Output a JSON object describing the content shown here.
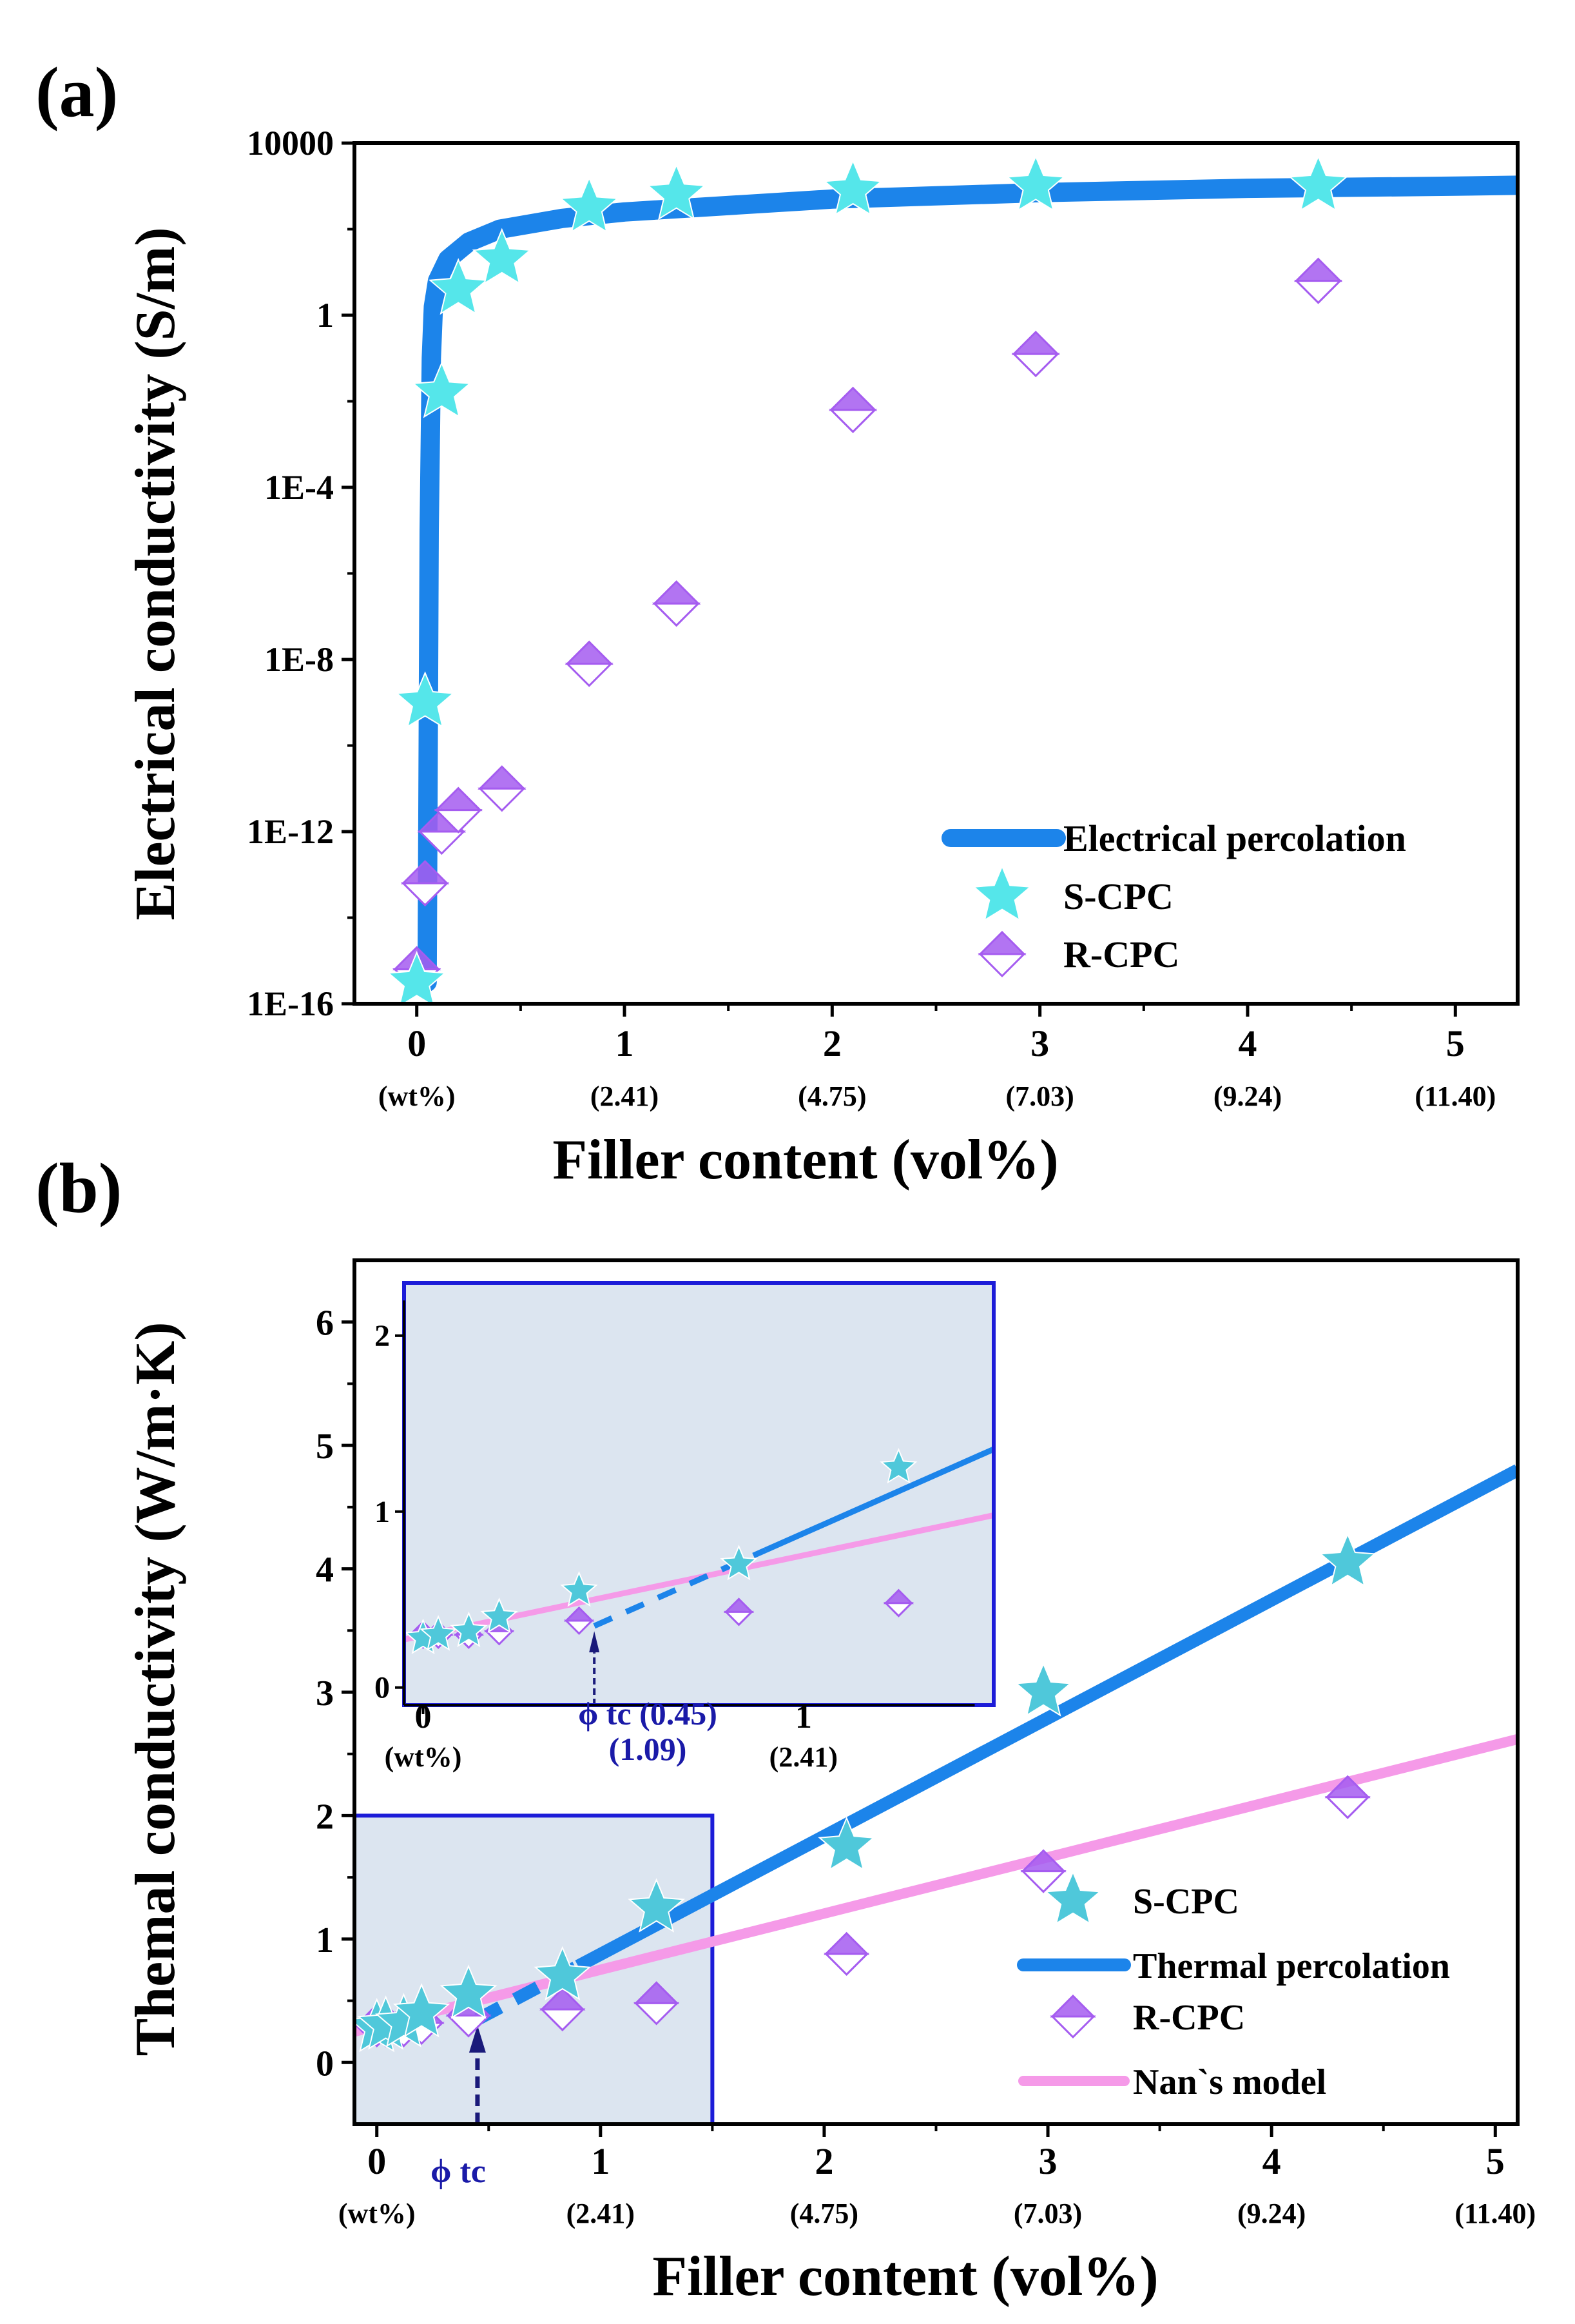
{
  "chart_data": [
    {
      "panel_label": "(a)",
      "type": "scatter",
      "title": "",
      "xlabel": "Filler content (vol%)",
      "ylabel": "Electrical conductivity (S/m)",
      "yscale": "log",
      "xlim": [
        -0.3,
        5.3
      ],
      "ylim_log10": [
        -16,
        4
      ],
      "xticks": [
        0,
        1,
        2,
        3,
        4,
        5
      ],
      "xtick_labels": [
        "0",
        "1",
        "2",
        "3",
        "4",
        "5"
      ],
      "xtick_sublabels": [
        "(wt%)",
        "(2.41)",
        "(4.75)",
        "(7.03)",
        "(9.24)",
        "(11.40)"
      ],
      "yticks_log10": [
        4,
        0,
        -4,
        -8,
        -12,
        -16
      ],
      "ytick_labels": [
        "10000",
        "1",
        "1E-4",
        "1E-8",
        "1E-12",
        "1E-16"
      ],
      "legend": [
        "Electrical percolation",
        "S-CPC",
        "R-CPC"
      ],
      "legend_position": "bottom-right",
      "series": [
        {
          "name": "S-CPC",
          "marker": "star",
          "color": "#55e6ea",
          "x": [
            0.0,
            0.04,
            0.12,
            0.2,
            0.41,
            0.83,
            1.25,
            2.1,
            2.98,
            4.34
          ],
          "log10_y": [
            -15.5,
            -9.0,
            -1.8,
            0.6,
            1.3,
            2.5,
            2.8,
            2.9,
            3.0,
            3.0
          ]
        },
        {
          "name": "R-CPC",
          "marker": "diamond",
          "color": "#a55cf0",
          "x": [
            0.0,
            0.04,
            0.12,
            0.2,
            0.41,
            0.83,
            1.25,
            2.1,
            2.98,
            4.34
          ],
          "log10_y": [
            -15.2,
            -13.2,
            -12.0,
            -11.5,
            -11.0,
            -8.1,
            -6.7,
            -2.2,
            -0.9,
            0.8
          ]
        },
        {
          "name": "Electrical percolation",
          "type": "line",
          "color": "#1c84ea",
          "x": [
            0.05,
            0.06,
            0.07,
            0.08,
            0.1,
            0.15,
            0.25,
            0.4,
            0.7,
            1.0,
            2.0,
            3.0,
            4.0,
            5.0,
            5.3
          ],
          "log10_y": [
            -15.5,
            -5.0,
            -1.0,
            0.2,
            0.8,
            1.3,
            1.7,
            2.0,
            2.25,
            2.4,
            2.7,
            2.85,
            2.95,
            3.0,
            3.02
          ]
        }
      ]
    },
    {
      "panel_label": "(b)",
      "type": "scatter",
      "title": "",
      "xlabel": "Filler content (vol%)",
      "ylabel": "Themal conductivity (W/m·K)",
      "xlim": [
        -0.1,
        5.1
      ],
      "ylim": [
        -0.5,
        6.5
      ],
      "xticks": [
        0,
        1,
        2,
        3,
        4,
        5
      ],
      "xtick_labels": [
        "0",
        "1",
        "2",
        "3",
        "4",
        "5"
      ],
      "xtick_sublabels": [
        "(wt%)",
        "(2.41)",
        "(4.75)",
        "(7.03)",
        "(9.24)",
        "(11.40)"
      ],
      "yticks": [
        0,
        1,
        2,
        3,
        4,
        5,
        6
      ],
      "ytick_labels": [
        "0",
        "1",
        "2",
        "3",
        "4",
        "5",
        "6"
      ],
      "legend": [
        "S-CPC",
        "Thermal percolation",
        "R-CPC",
        "Nan`s model"
      ],
      "legend_position": "bottom-right",
      "annotation": "ϕ tc",
      "percolation_threshold_x": 0.45,
      "series": [
        {
          "name": "S-CPC",
          "marker": "star",
          "color": "#4fc8da",
          "x": [
            0.0,
            0.04,
            0.12,
            0.2,
            0.41,
            0.83,
            1.25,
            2.1,
            2.98,
            4.34
          ],
          "y": [
            0.28,
            0.3,
            0.32,
            0.4,
            0.55,
            0.7,
            1.25,
            1.75,
            3.0,
            4.05
          ]
        },
        {
          "name": "R-CPC",
          "marker": "diamond",
          "color": "#a55cf0",
          "x": [
            0.0,
            0.04,
            0.12,
            0.2,
            0.41,
            0.83,
            1.25,
            2.1,
            2.98,
            4.34
          ],
          "y": [
            0.3,
            0.3,
            0.3,
            0.32,
            0.38,
            0.43,
            0.48,
            0.88,
            1.55,
            2.15
          ]
        },
        {
          "name": "Thermal percolation",
          "type": "line",
          "color": "#1c84ea",
          "x": [
            0.45,
            5.1
          ],
          "y": [
            0.35,
            4.8
          ],
          "dashed_x_range": [
            0.45,
            0.9
          ]
        },
        {
          "name": "Nan`s model",
          "type": "line",
          "color": "#f59ae8",
          "x": [
            -0.1,
            5.1
          ],
          "y": [
            0.25,
            2.62
          ]
        }
      ],
      "inset": {
        "xlim": [
          -0.05,
          1.5
        ],
        "ylim": [
          -0.1,
          2.3
        ],
        "xticks": [
          0,
          1
        ],
        "xtick_labels": [
          "0",
          "1"
        ],
        "xtick_sublabels": [
          "(wt%)",
          "(2.41)"
        ],
        "yticks": [
          0,
          1,
          2
        ],
        "ytick_labels": [
          "0",
          "1",
          "2"
        ],
        "annotation": "ϕ tc (0.45)",
        "annotation_sub": "(1.09)"
      }
    }
  ]
}
